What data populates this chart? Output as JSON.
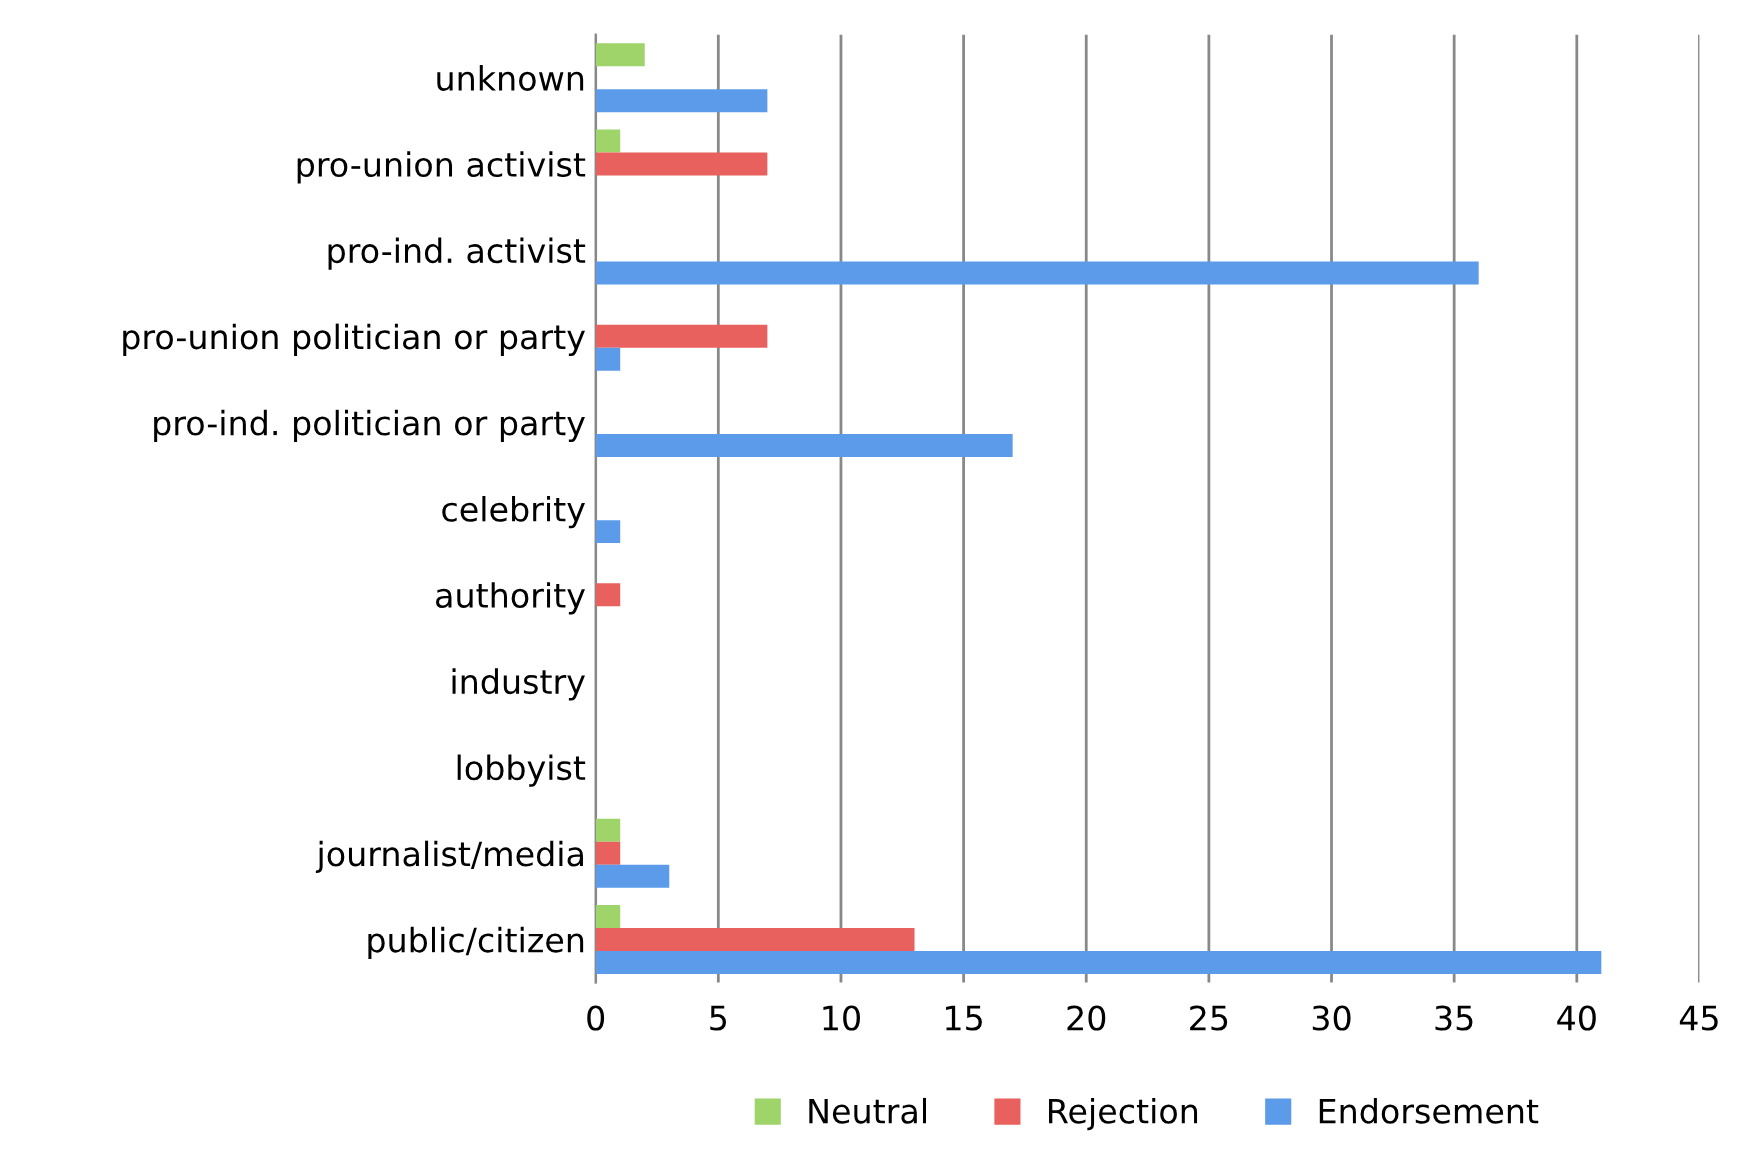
{
  "chart_data": {
    "type": "bar",
    "orientation": "horizontal",
    "categories": [
      "unknown",
      "pro-union activist",
      "pro-ind. activist",
      "pro-union politician or party",
      "pro-ind. politician or party",
      "celebrity",
      "authority",
      "industry",
      "lobbyist",
      "journalist/media",
      "public/citizen"
    ],
    "series": [
      {
        "name": "Neutral",
        "color": "#9ed46a",
        "values": [
          2,
          1,
          0,
          0,
          0,
          0,
          0,
          0,
          0,
          1,
          1
        ]
      },
      {
        "name": "Rejection",
        "color": "#e8615f",
        "values": [
          0,
          7,
          0,
          7,
          0,
          0,
          1,
          0,
          0,
          1,
          13
        ]
      },
      {
        "name": "Endorsement",
        "color": "#5b9bea",
        "values": [
          7,
          0,
          36,
          1,
          17,
          1,
          0,
          0,
          0,
          3,
          41
        ]
      }
    ],
    "xlim": [
      0,
      45
    ],
    "xticks": [
      0,
      5,
      10,
      15,
      20,
      25,
      30,
      35,
      40,
      45
    ],
    "grid": "x",
    "legend": "bottom"
  }
}
